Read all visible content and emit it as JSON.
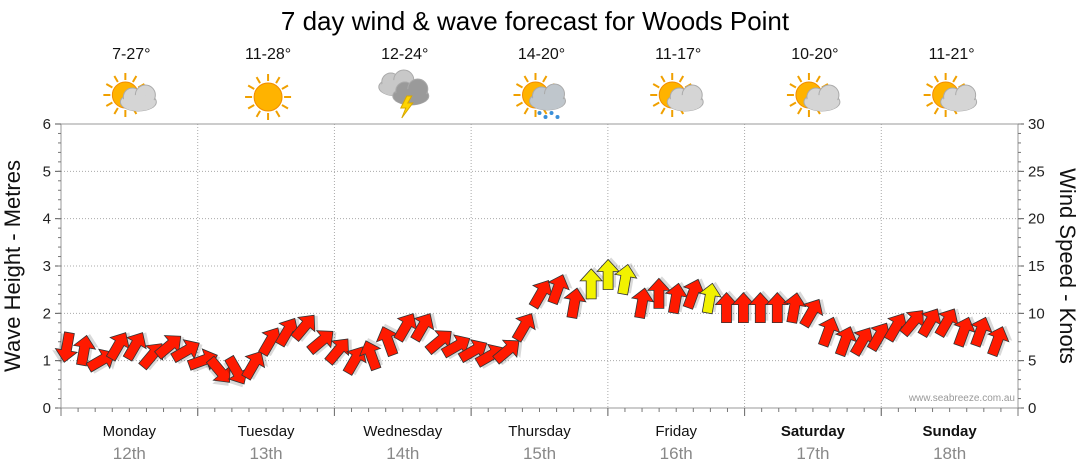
{
  "chart_data": {
    "type": "line",
    "title": "7 day wind & wave forecast for Woods Point",
    "ylabel_left": "Wave Height - Metres",
    "ylabel_right": "Wind Speed - Knots",
    "ylim_left": [
      0,
      6
    ],
    "ylim_right": [
      0,
      30
    ],
    "yticks_left": [
      "0",
      "1",
      "2",
      "3",
      "4",
      "5",
      "6"
    ],
    "yticks_right": [
      "0",
      "5",
      "10",
      "15",
      "20",
      "25",
      "30"
    ],
    "days": [
      {
        "day": "Monday",
        "date": "12th",
        "temp": "7-27°",
        "icon": "partly-cloudy-icon",
        "bold": false
      },
      {
        "day": "Tuesday",
        "date": "13th",
        "temp": "11-28°",
        "icon": "sunny-icon",
        "bold": false
      },
      {
        "day": "Wednesday",
        "date": "14th",
        "temp": "12-24°",
        "icon": "thunderstorm-icon",
        "bold": false
      },
      {
        "day": "Thursday",
        "date": "15th",
        "temp": "14-20°",
        "icon": "sun-showers-icon",
        "bold": false
      },
      {
        "day": "Friday",
        "date": "16th",
        "temp": "11-17°",
        "icon": "partly-cloudy-icon",
        "bold": false
      },
      {
        "day": "Saturday",
        "date": "17th",
        "temp": "10-20°",
        "icon": "partly-cloudy-icon",
        "bold": true
      },
      {
        "day": "Sunday",
        "date": "18th",
        "temp": "11-21°",
        "icon": "partly-cloudy-icon",
        "bold": true
      }
    ],
    "wind_series": {
      "name": "Wind Speed - Knots",
      "color_normal": "#ff1a00",
      "color_highlight": "#f2f200",
      "x_hours": [
        0,
        3,
        6,
        9,
        12,
        15,
        18,
        21,
        24,
        27,
        30,
        33,
        36,
        39,
        42,
        45,
        48,
        51,
        54,
        57,
        60,
        63,
        66,
        69,
        72,
        75,
        78,
        81,
        84,
        87,
        90,
        93,
        96,
        99,
        102,
        105,
        108,
        111,
        114,
        117,
        120,
        123,
        126,
        129,
        132,
        135,
        138,
        141,
        144,
        147,
        150,
        153,
        156,
        159,
        162,
        165
      ],
      "knots": [
        6.5,
        6,
        5,
        6.5,
        6.5,
        5.5,
        6.5,
        6,
        5,
        4,
        4,
        4.5,
        7,
        8,
        8.5,
        7,
        6,
        5,
        5.5,
        7,
        8.5,
        8.5,
        7,
        6.5,
        6,
        5.5,
        6,
        8.5,
        12,
        12.5,
        11,
        13,
        14,
        13.5,
        11,
        12,
        11.5,
        12,
        11.5,
        10.5,
        10.5,
        10.5,
        10.5,
        10.5,
        10,
        8,
        7,
        7,
        7.5,
        8.5,
        9,
        9,
        9,
        8,
        8,
        7
      ],
      "direction_deg": [
        100,
        280,
        330,
        300,
        300,
        310,
        320,
        330,
        340,
        50,
        60,
        300,
        300,
        300,
        310,
        320,
        310,
        300,
        250,
        250,
        300,
        300,
        320,
        330,
        330,
        330,
        320,
        300,
        300,
        290,
        280,
        270,
        270,
        280,
        280,
        270,
        280,
        290,
        280,
        270,
        270,
        270,
        270,
        280,
        300,
        290,
        290,
        300,
        300,
        300,
        310,
        300,
        300,
        290,
        290,
        290
      ],
      "highlight": [
        false,
        false,
        false,
        false,
        false,
        false,
        false,
        false,
        false,
        false,
        false,
        false,
        false,
        false,
        false,
        false,
        false,
        false,
        false,
        false,
        false,
        false,
        false,
        false,
        false,
        false,
        false,
        false,
        false,
        false,
        false,
        true,
        true,
        true,
        false,
        false,
        false,
        false,
        true,
        false,
        false,
        false,
        false,
        false,
        false,
        false,
        false,
        false,
        false,
        false,
        false,
        false,
        false,
        false,
        false,
        false
      ]
    },
    "grid": true
  },
  "watermark": "www.seabreeze.com.au"
}
